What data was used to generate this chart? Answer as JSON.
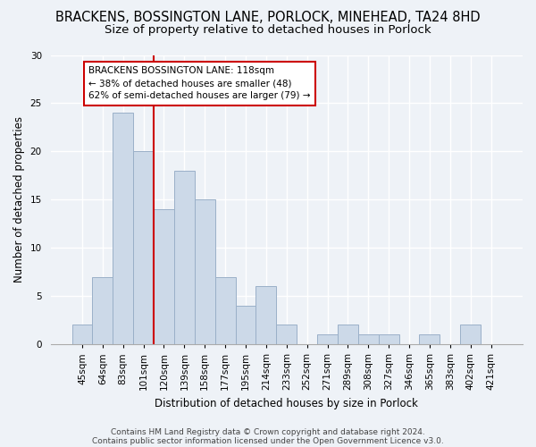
{
  "title1": "BRACKENS, BOSSINGTON LANE, PORLOCK, MINEHEAD, TA24 8HD",
  "title2": "Size of property relative to detached houses in Porlock",
  "xlabel": "Distribution of detached houses by size in Porlock",
  "ylabel": "Number of detached properties",
  "categories": [
    "45sqm",
    "64sqm",
    "83sqm",
    "101sqm",
    "120sqm",
    "139sqm",
    "158sqm",
    "177sqm",
    "195sqm",
    "214sqm",
    "233sqm",
    "252sqm",
    "271sqm",
    "289sqm",
    "308sqm",
    "327sqm",
    "346sqm",
    "365sqm",
    "383sqm",
    "402sqm",
    "421sqm"
  ],
  "values": [
    2,
    7,
    24,
    20,
    14,
    18,
    15,
    7,
    4,
    6,
    2,
    0,
    1,
    2,
    1,
    1,
    0,
    1,
    0,
    2,
    0
  ],
  "bar_color": "#ccd9e8",
  "bar_edge_color": "#9ab0c8",
  "highlight_line_color": "#cc0000",
  "highlight_line_index": 3.5,
  "annotation_text": "BRACKENS BOSSINGTON LANE: 118sqm\n← 38% of detached houses are smaller (48)\n62% of semi-detached houses are larger (79) →",
  "annotation_box_color": "#ffffff",
  "annotation_box_edge": "#cc0000",
  "ylim": [
    0,
    30
  ],
  "yticks": [
    0,
    5,
    10,
    15,
    20,
    25,
    30
  ],
  "footnote1": "Contains HM Land Registry data © Crown copyright and database right 2024.",
  "footnote2": "Contains public sector information licensed under the Open Government Licence v3.0.",
  "background_color": "#eef2f7",
  "grid_color": "#ffffff",
  "title1_fontsize": 10.5,
  "title2_fontsize": 9.5,
  "xlabel_fontsize": 8.5,
  "ylabel_fontsize": 8.5,
  "footnote_fontsize": 6.5,
  "tick_fontsize": 7.5,
  "ann_fontsize": 7.5
}
